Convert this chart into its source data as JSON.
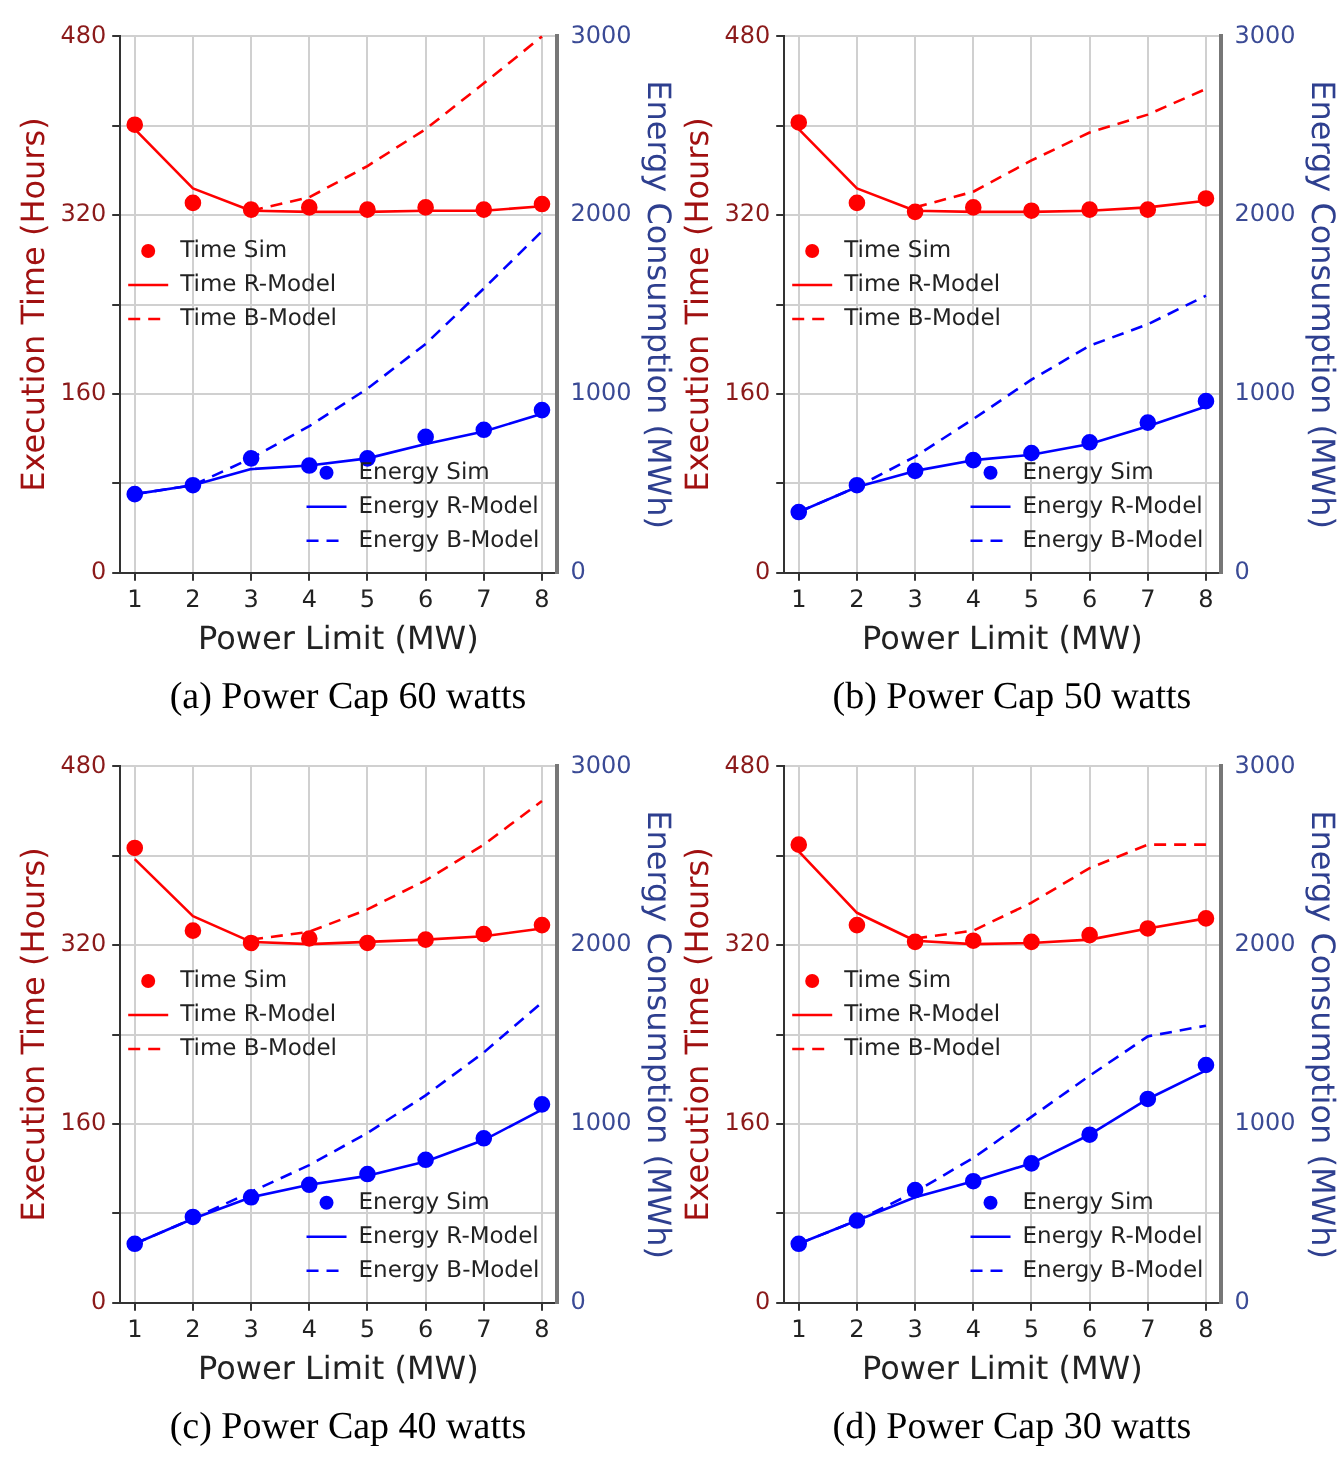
{
  "chart_data": [
    {
      "type": "line",
      "title": "(a) Power Cap 60 watts",
      "xlabel": "Power Limit (MW)",
      "ylabel": "Execution Time (Hours)",
      "y2label": "Energy Consumption (MWh)",
      "x": [
        1,
        2,
        3,
        4,
        5,
        6,
        7,
        8
      ],
      "xlim": [
        0.75,
        8.25
      ],
      "xticks": [
        1,
        2,
        3,
        4,
        5,
        6,
        7,
        8
      ],
      "ylim": [
        0,
        480
      ],
      "yticks": [
        0,
        {
          "value": 80,
          "label": null
        },
        160,
        {
          "value": 240,
          "label": null
        },
        320,
        {
          "value": 400,
          "label": null
        },
        480
      ],
      "y2lim": [
        0,
        3000
      ],
      "y2ticks": [
        0,
        {
          "value": 500,
          "label": null
        },
        1000,
        {
          "value": 1500,
          "label": null
        },
        2000,
        {
          "value": 2500,
          "label": null
        },
        3000
      ],
      "grid": true,
      "legend": "left",
      "series": [
        {
          "name": "Time Sim",
          "type": "scatter",
          "marker": "circle",
          "color": "#ff0000",
          "values": [
            401,
            331,
            325,
            327,
            325,
            327,
            325,
            330
          ]
        },
        {
          "name": "Time R-Model",
          "type": "line",
          "line_style": "solid",
          "color": "#ff0000",
          "values": [
            397,
            344,
            324,
            323,
            323,
            324,
            324,
            328
          ]
        },
        {
          "name": "Time B-Model",
          "type": "line",
          "line_style": "dashed",
          "color": "#ff0000",
          "values": [
            null,
            null,
            324,
            336,
            364,
            397,
            438,
            480
          ]
        },
        {
          "name": "Energy Sim",
          "type": "scatter",
          "marker": "circle",
          "axis": "y2",
          "color": "#0000ff",
          "values": [
            440,
            490,
            640,
            600,
            640,
            760,
            800,
            910
          ]
        },
        {
          "name": "Energy R-Model",
          "type": "line",
          "line_style": "solid",
          "axis": "y2",
          "color": "#0000ff",
          "values": [
            440,
            490,
            580,
            600,
            640,
            720,
            790,
            890
          ]
        },
        {
          "name": "Energy B-Model",
          "type": "line",
          "line_style": "dashed",
          "axis": "y2",
          "color": "#0000ff",
          "values": [
            440,
            490,
            640,
            820,
            1030,
            1280,
            1590,
            1910
          ]
        }
      ]
    },
    {
      "type": "line",
      "title": "(b) Power Cap 50 watts",
      "xlabel": "Power Limit (MW)",
      "ylabel": "Execution Time (Hours)",
      "y2label": "Energy Consumption (MWh)",
      "x": [
        1,
        2,
        3,
        4,
        5,
        6,
        7,
        8
      ],
      "xlim": [
        0.75,
        8.25
      ],
      "xticks": [
        1,
        2,
        3,
        4,
        5,
        6,
        7,
        8
      ],
      "ylim": [
        0,
        480
      ],
      "yticks": [
        0,
        {
          "value": 80,
          "label": null
        },
        160,
        {
          "value": 240,
          "label": null
        },
        320,
        {
          "value": 400,
          "label": null
        },
        480
      ],
      "y2lim": [
        0,
        3000
      ],
      "y2ticks": [
        0,
        {
          "value": 500,
          "label": null
        },
        1000,
        {
          "value": 1500,
          "label": null
        },
        2000,
        {
          "value": 2500,
          "label": null
        },
        3000
      ],
      "grid": true,
      "legend": "left",
      "series": [
        {
          "name": "Time Sim",
          "type": "scatter",
          "marker": "circle",
          "color": "#ff0000",
          "values": [
            403,
            331,
            323,
            327,
            324,
            325,
            325,
            335
          ]
        },
        {
          "name": "Time R-Model",
          "type": "line",
          "line_style": "solid",
          "color": "#ff0000",
          "values": [
            397,
            344,
            324,
            323,
            323,
            324,
            327,
            333
          ]
        },
        {
          "name": "Time B-Model",
          "type": "line",
          "line_style": "dashed",
          "color": "#ff0000",
          "values": [
            null,
            null,
            327,
            341,
            369,
            394,
            410,
            433
          ]
        },
        {
          "name": "Energy Sim",
          "type": "scatter",
          "marker": "circle",
          "axis": "y2",
          "color": "#0000ff",
          "values": [
            340,
            490,
            570,
            630,
            670,
            730,
            840,
            960
          ]
        },
        {
          "name": "Energy R-Model",
          "type": "line",
          "line_style": "solid",
          "axis": "y2",
          "color": "#0000ff",
          "values": [
            340,
            480,
            570,
            630,
            660,
            720,
            820,
            930
          ]
        },
        {
          "name": "Energy B-Model",
          "type": "line",
          "line_style": "dashed",
          "axis": "y2",
          "color": "#0000ff",
          "values": [
            340,
            480,
            650,
            860,
            1080,
            1270,
            1390,
            1550
          ]
        }
      ]
    },
    {
      "type": "line",
      "title": "(c) Power Cap 40 watts",
      "xlabel": "Power Limit (MW)",
      "ylabel": "Execution Time (Hours)",
      "y2label": "Energy Consumption (MWh)",
      "x": [
        1,
        2,
        3,
        4,
        5,
        6,
        7,
        8
      ],
      "xlim": [
        0.75,
        8.25
      ],
      "xticks": [
        1,
        2,
        3,
        4,
        5,
        6,
        7,
        8
      ],
      "ylim": [
        0,
        480
      ],
      "yticks": [
        0,
        {
          "value": 80,
          "label": null
        },
        160,
        {
          "value": 240,
          "label": null
        },
        320,
        {
          "value": 400,
          "label": null
        },
        480
      ],
      "y2lim": [
        0,
        3000
      ],
      "y2ticks": [
        0,
        {
          "value": 500,
          "label": null
        },
        1000,
        {
          "value": 1500,
          "label": null
        },
        2000,
        {
          "value": 2500,
          "label": null
        },
        3000
      ],
      "grid": true,
      "legend": "left",
      "series": [
        {
          "name": "Time Sim",
          "type": "scatter",
          "marker": "circle",
          "color": "#ff0000",
          "values": [
            407,
            333,
            322,
            326,
            322,
            325,
            330,
            338
          ]
        },
        {
          "name": "Time R-Model",
          "type": "line",
          "line_style": "solid",
          "color": "#ff0000",
          "values": [
            397,
            346,
            323,
            321,
            323,
            325,
            328,
            335
          ]
        },
        {
          "name": "Time B-Model",
          "type": "line",
          "line_style": "dashed",
          "color": "#ff0000",
          "values": [
            null,
            null,
            325,
            332,
            352,
            378,
            410,
            449
          ]
        },
        {
          "name": "Energy Sim",
          "type": "scatter",
          "marker": "circle",
          "axis": "y2",
          "color": "#0000ff",
          "values": [
            330,
            480,
            590,
            660,
            720,
            800,
            920,
            1110
          ]
        },
        {
          "name": "Energy R-Model",
          "type": "line",
          "line_style": "solid",
          "axis": "y2",
          "color": "#0000ff",
          "values": [
            330,
            470,
            590,
            660,
            710,
            790,
            910,
            1080
          ]
        },
        {
          "name": "Energy B-Model",
          "type": "line",
          "line_style": "dashed",
          "axis": "y2",
          "color": "#0000ff",
          "values": [
            330,
            470,
            620,
            770,
            950,
            1160,
            1400,
            1680
          ]
        }
      ]
    },
    {
      "type": "line",
      "title": "(d) Power Cap 30 watts",
      "xlabel": "Power Limit (MW)",
      "ylabel": "Execution Time (Hours)",
      "y2label": "Energy Consumption (MWh)",
      "x": [
        1,
        2,
        3,
        4,
        5,
        6,
        7,
        8
      ],
      "xlim": [
        0.75,
        8.25
      ],
      "xticks": [
        1,
        2,
        3,
        4,
        5,
        6,
        7,
        8
      ],
      "ylim": [
        0,
        480
      ],
      "yticks": [
        0,
        {
          "value": 80,
          "label": null
        },
        160,
        {
          "value": 240,
          "label": null
        },
        320,
        {
          "value": 400,
          "label": null
        },
        480
      ],
      "y2lim": [
        0,
        3000
      ],
      "y2ticks": [
        0,
        {
          "value": 500,
          "label": null
        },
        1000,
        {
          "value": 1500,
          "label": null
        },
        2000,
        {
          "value": 2500,
          "label": null
        },
        3000
      ],
      "grid": true,
      "legend": "left",
      "series": [
        {
          "name": "Time Sim",
          "type": "scatter",
          "marker": "circle",
          "color": "#ff0000",
          "values": [
            410,
            338,
            323,
            324,
            323,
            329,
            335,
            344
          ]
        },
        {
          "name": "Time R-Model",
          "type": "line",
          "line_style": "solid",
          "color": "#ff0000",
          "values": [
            404,
            349,
            324,
            321,
            322,
            325,
            335,
            344
          ]
        },
        {
          "name": "Time B-Model",
          "type": "line",
          "line_style": "dashed",
          "color": "#ff0000",
          "values": [
            null,
            null,
            326,
            333,
            358,
            389,
            410,
            410
          ]
        },
        {
          "name": "Energy Sim",
          "type": "scatter",
          "marker": "circle",
          "axis": "y2",
          "color": "#0000ff",
          "values": [
            330,
            460,
            630,
            680,
            780,
            940,
            1140,
            1330
          ]
        },
        {
          "name": "Energy R-Model",
          "type": "line",
          "line_style": "solid",
          "axis": "y2",
          "color": "#0000ff",
          "values": [
            330,
            460,
            590,
            680,
            780,
            940,
            1140,
            1300
          ]
        },
        {
          "name": "Energy B-Model",
          "type": "line",
          "line_style": "dashed",
          "axis": "y2",
          "color": "#0000ff",
          "values": [
            330,
            460,
            620,
            810,
            1040,
            1270,
            1490,
            1550
          ]
        }
      ]
    }
  ]
}
